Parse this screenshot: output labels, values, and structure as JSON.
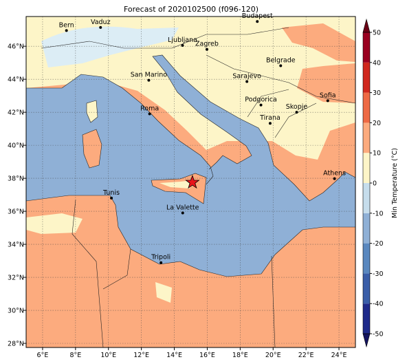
{
  "title": "Forecast of 2020102500 (f096-120)",
  "map": {
    "xlim": [
      5,
      25
    ],
    "ylim": [
      27.75,
      47.8
    ],
    "xticks": [
      {
        "value": 6,
        "label": "6°E"
      },
      {
        "value": 8,
        "label": "8°E"
      },
      {
        "value": 10,
        "label": "10°E"
      },
      {
        "value": 12,
        "label": "12°E"
      },
      {
        "value": 14,
        "label": "14°E"
      },
      {
        "value": 16,
        "label": "16°E"
      },
      {
        "value": 18,
        "label": "18°E"
      },
      {
        "value": 20,
        "label": "20°E"
      },
      {
        "value": 22,
        "label": "22°E"
      },
      {
        "value": 24,
        "label": "24°E"
      }
    ],
    "yticks": [
      {
        "value": 28,
        "label": "28°N"
      },
      {
        "value": 30,
        "label": "30°N"
      },
      {
        "value": 32,
        "label": "32°N"
      },
      {
        "value": 34,
        "label": "34°N"
      },
      {
        "value": 36,
        "label": "36°N"
      },
      {
        "value": 38,
        "label": "38°N"
      },
      {
        "value": 40,
        "label": "40°N"
      },
      {
        "value": 42,
        "label": "42°N"
      },
      {
        "value": 44,
        "label": "44°N"
      },
      {
        "value": 46,
        "label": "46°N"
      }
    ],
    "grid": true,
    "cities": [
      {
        "name": "Bern",
        "lon": 7.45,
        "lat": 46.95
      },
      {
        "name": "Vaduz",
        "lon": 9.52,
        "lat": 47.14
      },
      {
        "name": "Budapest",
        "lon": 19.04,
        "lat": 47.5
      },
      {
        "name": "Ljubljana",
        "lon": 14.5,
        "lat": 46.05
      },
      {
        "name": "Zagreb",
        "lon": 15.98,
        "lat": 45.81
      },
      {
        "name": "San Marino",
        "lon": 12.45,
        "lat": 43.94
      },
      {
        "name": "Sarajevo",
        "lon": 18.41,
        "lat": 43.86
      },
      {
        "name": "Belgrade",
        "lon": 20.46,
        "lat": 44.82
      },
      {
        "name": "Roma",
        "lon": 12.5,
        "lat": 41.9
      },
      {
        "name": "Podgorica",
        "lon": 19.26,
        "lat": 42.44
      },
      {
        "name": "Skopje",
        "lon": 21.43,
        "lat": 42.0
      },
      {
        "name": "Sofia",
        "lon": 23.32,
        "lat": 42.7
      },
      {
        "name": "Tirana",
        "lon": 19.82,
        "lat": 41.33
      },
      {
        "name": "Athens",
        "lon": 23.73,
        "lat": 37.98
      },
      {
        "name": "Tunis",
        "lon": 10.18,
        "lat": 36.8
      },
      {
        "name": "La Valette",
        "lon": 14.51,
        "lat": 35.9
      },
      {
        "name": "Tripoli",
        "lon": 13.19,
        "lat": 32.89
      }
    ],
    "star": {
      "lon": 15.1,
      "lat": 37.75,
      "color": "#e8141b"
    }
  },
  "colorbar": {
    "label": "Min Temperature (°C)",
    "ticks": [
      -50,
      -40,
      -30,
      -20,
      -10,
      0,
      10,
      20,
      30,
      40,
      50
    ],
    "colors": [
      "#1f2a8a",
      "#3a5ea8",
      "#5a88bf",
      "#8fb0d6",
      "#c6ddec",
      "#fdf5c8",
      "#fcab7e",
      "#ee6a45",
      "#d0281e",
      "#9a0020"
    ],
    "under": "#14145f",
    "over": "#6b0015"
  }
}
